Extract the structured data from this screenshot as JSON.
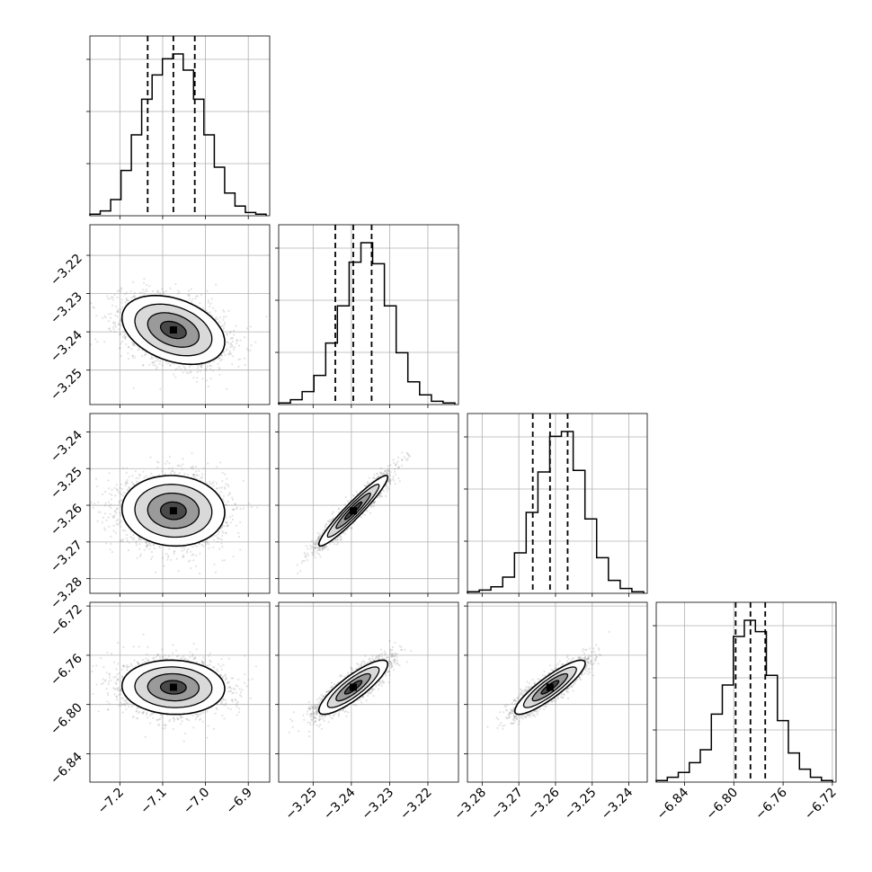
{
  "chart_data": {
    "type": "corner",
    "grid": true,
    "parameters": [
      {
        "index": 0,
        "mean": -7.075,
        "std": 0.06,
        "q16": -7.135,
        "q50": -7.075,
        "q84": -7.025,
        "range": [
          -7.27,
          -6.85
        ],
        "ticks": [
          -7.2,
          -7.1,
          -7.0,
          -6.9
        ],
        "tick_labels": [
          "−7.2",
          "−7.1",
          "−7.0",
          "−6.9"
        ]
      },
      {
        "index": 1,
        "mean": -3.2395,
        "std": 0.0045,
        "q16": -3.2442,
        "q50": -3.2395,
        "q84": -3.2347,
        "range": [
          -3.259,
          -3.212
        ],
        "ticks": [
          -3.25,
          -3.24,
          -3.23,
          -3.22
        ],
        "tick_labels": [
          "−3.25",
          "−3.24",
          "−3.23",
          "−3.22"
        ]
      },
      {
        "index": 2,
        "mean": -3.2615,
        "std": 0.0048,
        "q16": -3.2662,
        "q50": -3.2615,
        "q84": -3.2567,
        "range": [
          -3.284,
          -3.235
        ],
        "ticks": [
          -3.28,
          -3.27,
          -3.26,
          -3.25,
          -3.24
        ],
        "tick_labels": [
          "−3.28",
          "−3.27",
          "−3.26",
          "−3.25",
          "−3.24"
        ]
      },
      {
        "index": 3,
        "mean": -6.786,
        "std": 0.011,
        "q16": -6.7985,
        "q50": -6.7865,
        "q84": -6.7745,
        "range": [
          -6.863,
          -6.717
        ],
        "ticks": [
          -6.84,
          -6.8,
          -6.76,
          -6.72
        ],
        "tick_labels": [
          "−6.84",
          "−6.80",
          "−6.76",
          "−6.72"
        ]
      }
    ],
    "y_axis_ticks": {
      "1": {
        "ticks": [
          -3.25,
          -3.24,
          -3.23,
          -3.22
        ],
        "tick_labels": [
          "−3.25",
          "−3.24",
          "−3.23",
          "−3.22"
        ]
      },
      "2": {
        "ticks": [
          -3.28,
          -3.27,
          -3.26,
          -3.25,
          -3.24
        ],
        "tick_labels": [
          "−3.28",
          "−3.27",
          "−3.26",
          "−3.25",
          "−3.24"
        ]
      },
      "3": {
        "ticks": [
          -6.84,
          -6.8,
          -6.76,
          -6.72
        ],
        "tick_labels": [
          "−6.84",
          "−6.80",
          "−6.76",
          "−6.72"
        ]
      }
    },
    "correlations": [
      {
        "i": 1,
        "j": 0,
        "rho": -0.35
      },
      {
        "i": 2,
        "j": 0,
        "rho": -0.05
      },
      {
        "i": 2,
        "j": 1,
        "rho": 0.95
      },
      {
        "i": 3,
        "j": 0,
        "rho": -0.05
      },
      {
        "i": 3,
        "j": 1,
        "rho": 0.85
      },
      {
        "i": 3,
        "j": 2,
        "rho": 0.88
      }
    ],
    "histograms": [
      {
        "param": 0,
        "counts": [
          0.01,
          0.03,
          0.1,
          0.28,
          0.5,
          0.72,
          0.87,
          0.97,
          1.0,
          0.9,
          0.72,
          0.5,
          0.3,
          0.14,
          0.06,
          0.02,
          0.01
        ]
      },
      {
        "param": 1,
        "counts": [
          0.01,
          0.03,
          0.08,
          0.18,
          0.38,
          0.61,
          0.88,
          1.0,
          0.87,
          0.61,
          0.32,
          0.14,
          0.06,
          0.02,
          0.01
        ]
      },
      {
        "param": 2,
        "counts": [
          0.01,
          0.02,
          0.04,
          0.1,
          0.25,
          0.5,
          0.75,
          0.97,
          1.0,
          0.76,
          0.46,
          0.22,
          0.08,
          0.03,
          0.01
        ]
      },
      {
        "param": 3,
        "counts": [
          0.01,
          0.03,
          0.06,
          0.12,
          0.2,
          0.42,
          0.6,
          0.9,
          1.0,
          0.93,
          0.66,
          0.38,
          0.18,
          0.08,
          0.03,
          0.01
        ]
      }
    ],
    "colors": {
      "line": "#000000",
      "points": "#7f7f7f",
      "grid": "#b0b0b0"
    }
  }
}
